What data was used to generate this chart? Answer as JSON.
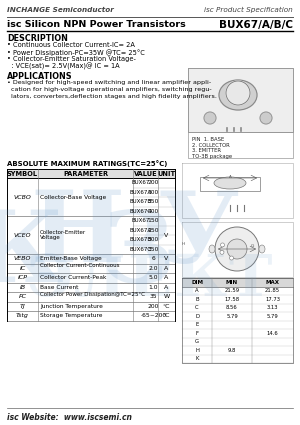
{
  "header_left": "INCHANGE Semiconductor",
  "header_right": "isc Product Specification",
  "title_left": "isc Silicon NPN Power Transistors",
  "title_right": "BUX67/A/B/C",
  "description_title": "DESCRIPTION",
  "description_items": [
    "• Continuous Collector Current-IC= 2A",
    "• Power Dissipation-PC=35W @TC= 25°C",
    "• Collector-Emitter Saturation Voltage-",
    "  : VCE(sat)= 2.5V(Max)@ IC = 1A"
  ],
  "applications_title": "APPLICATIONS",
  "applications_items": [
    "• Designed for high-speed switching and linear amplifier appli-",
    "  cation for high-voltage operational amplifiers, switching regu-",
    "  lators, converters,deflection stages and high fidelity amplifiers."
  ],
  "abs_max_title": "ABSOLUTE MAXIMUM RATINGS(TC=25°C)",
  "table_col_headers": [
    "SYMBOL",
    "PARAMETER",
    "VALUE",
    "UNIT"
  ],
  "table_sections": [
    {
      "symbol": "VCBO",
      "param": "Collector-Base Voltage",
      "subrows": [
        [
          "BUX67",
          "200"
        ],
        [
          "BUX67A",
          "300"
        ],
        [
          "BUX67B",
          "350"
        ],
        [
          "BUX67C",
          "400"
        ]
      ],
      "unit": ""
    },
    {
      "symbol": "VCEO",
      "param": "Collector-Emitter Voltage",
      "subrows": [
        [
          "BUX67",
          "150"
        ],
        [
          "BUX67A",
          "250"
        ],
        [
          "BUX67B",
          "300"
        ],
        [
          "BUX67C",
          "350"
        ]
      ],
      "unit": "V"
    },
    {
      "symbol": "VEBO",
      "param": "Emitter-Base Voltage",
      "subrows": [
        [
          "",
          "6"
        ]
      ],
      "unit": "V"
    },
    {
      "symbol": "IC",
      "param": "Collector Current-Continuous",
      "subrows": [
        [
          "",
          "2.0"
        ]
      ],
      "unit": "A"
    },
    {
      "symbol": "ICP",
      "param": "Collector Current-Peak",
      "subrows": [
        [
          "",
          "5.0"
        ]
      ],
      "unit": "A"
    },
    {
      "symbol": "IB",
      "param": "Base Current",
      "subrows": [
        [
          "",
          "1.0"
        ]
      ],
      "unit": "A"
    },
    {
      "symbol": "PC",
      "param": "Collector Power Dissipation@TC=25°C",
      "subrows": [
        [
          "",
          "35"
        ]
      ],
      "unit": "W"
    },
    {
      "symbol": "TJ",
      "param": "Junction Temperature",
      "subrows": [
        [
          "",
          "200"
        ]
      ],
      "unit": "°C"
    },
    {
      "symbol": "Tstg",
      "param": "Storage Temperature",
      "subrows": [
        [
          "",
          "-65~200"
        ]
      ],
      "unit": "°C"
    }
  ],
  "pin_labels": [
    "PIN  1. BASE",
    "2. COLLECTOR",
    "3. EMITTER",
    "TO-3B package"
  ],
  "dim_headers": [
    "DIM",
    "MIN",
    "MAX"
  ],
  "dim_rows": [
    [
      "A",
      "21.59",
      "21.85"
    ],
    [
      "B",
      "17.58",
      "17.73"
    ],
    [
      "C",
      "8.56",
      "3.13"
    ],
    [
      "D",
      "5.79",
      "5.79"
    ],
    [
      "E",
      "",
      ""
    ],
    [
      "F",
      "",
      "14.6"
    ],
    [
      "G",
      "",
      ""
    ],
    [
      "H",
      "9.8",
      ""
    ],
    [
      "K",
      "",
      ""
    ]
  ],
  "footer_left": "isc Website:  www.iscsemi.cn",
  "bg_color": "#ffffff",
  "watermark_color": "#6699cc",
  "watermark_alpha": 0.18
}
